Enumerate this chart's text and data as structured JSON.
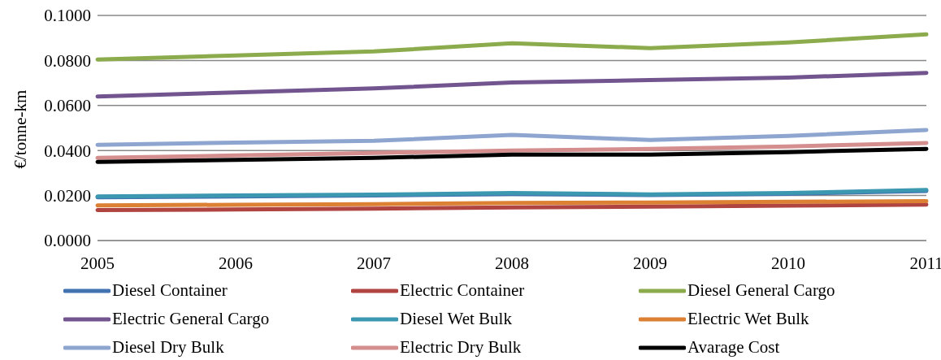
{
  "chart_data": {
    "type": "line",
    "ylabel": "€/tonne-km",
    "categories": [
      "2005",
      "2006",
      "2007",
      "2008",
      "2009",
      "2010",
      "2011"
    ],
    "series": [
      {
        "name": "Diesel Container",
        "color": "#4372b0",
        "values": [
          0.0192,
          0.0196,
          0.02,
          0.0207,
          0.0202,
          0.0208,
          0.022
        ]
      },
      {
        "name": "Electric Container",
        "color": "#b04440",
        "values": [
          0.0135,
          0.0138,
          0.0142,
          0.0147,
          0.0151,
          0.0155,
          0.016
        ]
      },
      {
        "name": "Diesel General Cargo",
        "color": "#8bab4c",
        "values": [
          0.0804,
          0.0822,
          0.084,
          0.0876,
          0.0855,
          0.088,
          0.0916
        ]
      },
      {
        "name": "Electric General Cargo",
        "color": "#72558f",
        "values": [
          0.064,
          0.0658,
          0.0676,
          0.0702,
          0.0713,
          0.0724,
          0.0745
        ]
      },
      {
        "name": "Diesel Wet Bulk",
        "color": "#3c97b0",
        "values": [
          0.0196,
          0.02,
          0.0204,
          0.0211,
          0.0205,
          0.0211,
          0.0225
        ]
      },
      {
        "name": "Electric Wet Bulk",
        "color": "#dc8034",
        "values": [
          0.0156,
          0.0159,
          0.0162,
          0.0167,
          0.0169,
          0.0172,
          0.0175
        ]
      },
      {
        "name": "Diesel Dry Bulk",
        "color": "#8ea6cf",
        "values": [
          0.0425,
          0.0435,
          0.0443,
          0.0469,
          0.0447,
          0.0465,
          0.0491
        ]
      },
      {
        "name": "Electric Dry Bulk",
        "color": "#d38e8d",
        "values": [
          0.0367,
          0.0378,
          0.0389,
          0.04,
          0.0407,
          0.0418,
          0.0433
        ]
      },
      {
        "name": "Avarage Cost",
        "color": "#000000",
        "values": [
          0.0349,
          0.0358,
          0.0367,
          0.0382,
          0.0382,
          0.0393,
          0.0407
        ]
      }
    ],
    "ylim": [
      0,
      0.1
    ],
    "yticks": [
      {
        "value": 0,
        "label": "0.0000"
      },
      {
        "value": 0.02,
        "label": "0.0200"
      },
      {
        "value": 0.04,
        "label": "0.0400"
      },
      {
        "value": 0.06,
        "label": "0.0600"
      },
      {
        "value": 0.08,
        "label": "0.0800"
      },
      {
        "value": 0.1,
        "label": "0.1000"
      }
    ],
    "grid": "y",
    "legend": "bottom",
    "marker": "none",
    "line_style": "solid"
  }
}
